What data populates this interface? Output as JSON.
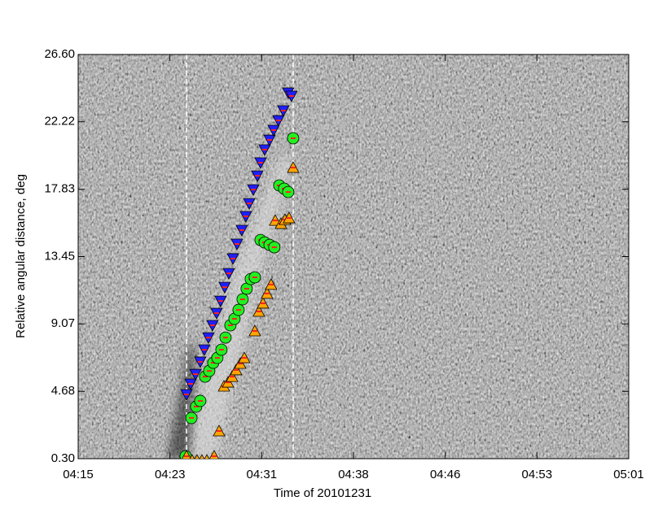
{
  "chart_data": {
    "type": "scatter",
    "x_label": "Time of 20101231",
    "y_label": "Relative angular distance, deg",
    "xlim": [
      255,
      301
    ],
    "xticks": [
      {
        "value": 255,
        "label": "04:15"
      },
      {
        "value": 262.67,
        "label": "04:23"
      },
      {
        "value": 270.33,
        "label": "04:31"
      },
      {
        "value": 278,
        "label": "04:38"
      },
      {
        "value": 285.67,
        "label": "04:46"
      },
      {
        "value": 293.33,
        "label": "04:53"
      },
      {
        "value": 301,
        "label": "05:01"
      }
    ],
    "ylim": [
      0.3,
      26.6
    ],
    "yticks": [
      {
        "value": 0.3,
        "label": "0.30"
      },
      4.68,
      9.07,
      13.45,
      17.83,
      22.22,
      {
        "value": 26.6,
        "label": "26.60"
      }
    ],
    "series": [
      {
        "color": "#2020ff",
        "marker": "triangle-down",
        "x": [
          264.05,
          264.39,
          264.8,
          265.2,
          265.54,
          265.88,
          266.22,
          266.56,
          266.9,
          267.24,
          267.59,
          267.93,
          268.27,
          268.67,
          269.01,
          269.29,
          269.63,
          269.97,
          270.24,
          270.58,
          270.99,
          271.33,
          271.73,
          272.14,
          272.55,
          272.82
        ],
        "values": [
          4.48,
          5.17,
          5.8,
          6.6,
          7.39,
          8.18,
          8.98,
          9.77,
          10.56,
          11.46,
          12.36,
          13.32,
          14.27,
          15.17,
          16.07,
          16.91,
          17.81,
          18.71,
          19.56,
          20.41,
          21.04,
          21.68,
          22.31,
          22.95,
          24.11,
          23.9
        ]
      },
      {
        "color": "#22ee22",
        "marker": "circle",
        "x": [
          263.98,
          264.46,
          264.86,
          265.2,
          265.61,
          265.95,
          266.29,
          266.63,
          266.97,
          267.31,
          267.72,
          268.06,
          268.4,
          268.74,
          269.08,
          269.42,
          269.76,
          270.24,
          270.58,
          270.99,
          271.39,
          271.8,
          272.21,
          272.55,
          272.96
        ],
        "values": [
          0.46,
          2.95,
          3.69,
          4.06,
          5.64,
          6.01,
          6.54,
          6.86,
          7.39,
          8.18,
          8.98,
          9.4,
          9.98,
          10.67,
          11.36,
          11.99,
          12.1,
          14.53,
          14.37,
          14.21,
          14.06,
          18.08,
          17.87,
          17.65,
          21.15
        ]
      },
      {
        "color": "#ffa500",
        "marker": "triangle-up",
        "x": [
          264.05,
          264.52,
          264.93,
          265.34,
          265.75,
          266.36,
          266.77,
          267.18,
          267.52,
          267.86,
          268.2,
          268.54,
          268.88,
          269.76,
          270.1,
          270.44,
          270.78,
          271.12,
          271.46,
          271.94,
          272.28,
          272.62,
          272.96
        ],
        "values": [
          0.46,
          0.19,
          0.19,
          0.19,
          0.19,
          0.46,
          2.1,
          5.01,
          5.27,
          5.64,
          6.07,
          6.49,
          6.86,
          8.61,
          9.88,
          10.41,
          11.05,
          11.63,
          15.8,
          15.59,
          15.85,
          15.96,
          19.24
        ]
      }
    ]
  }
}
